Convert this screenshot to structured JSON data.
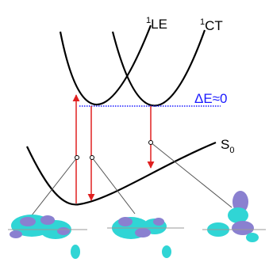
{
  "labels": [
    {
      "superscript": "1",
      "text": "LE"
    },
    {
      "superscript": "1",
      "text": "CT"
    },
    {
      "text": "ΔE≈0"
    },
    {
      "text": "S",
      "subscript": "0"
    }
  ]
}
